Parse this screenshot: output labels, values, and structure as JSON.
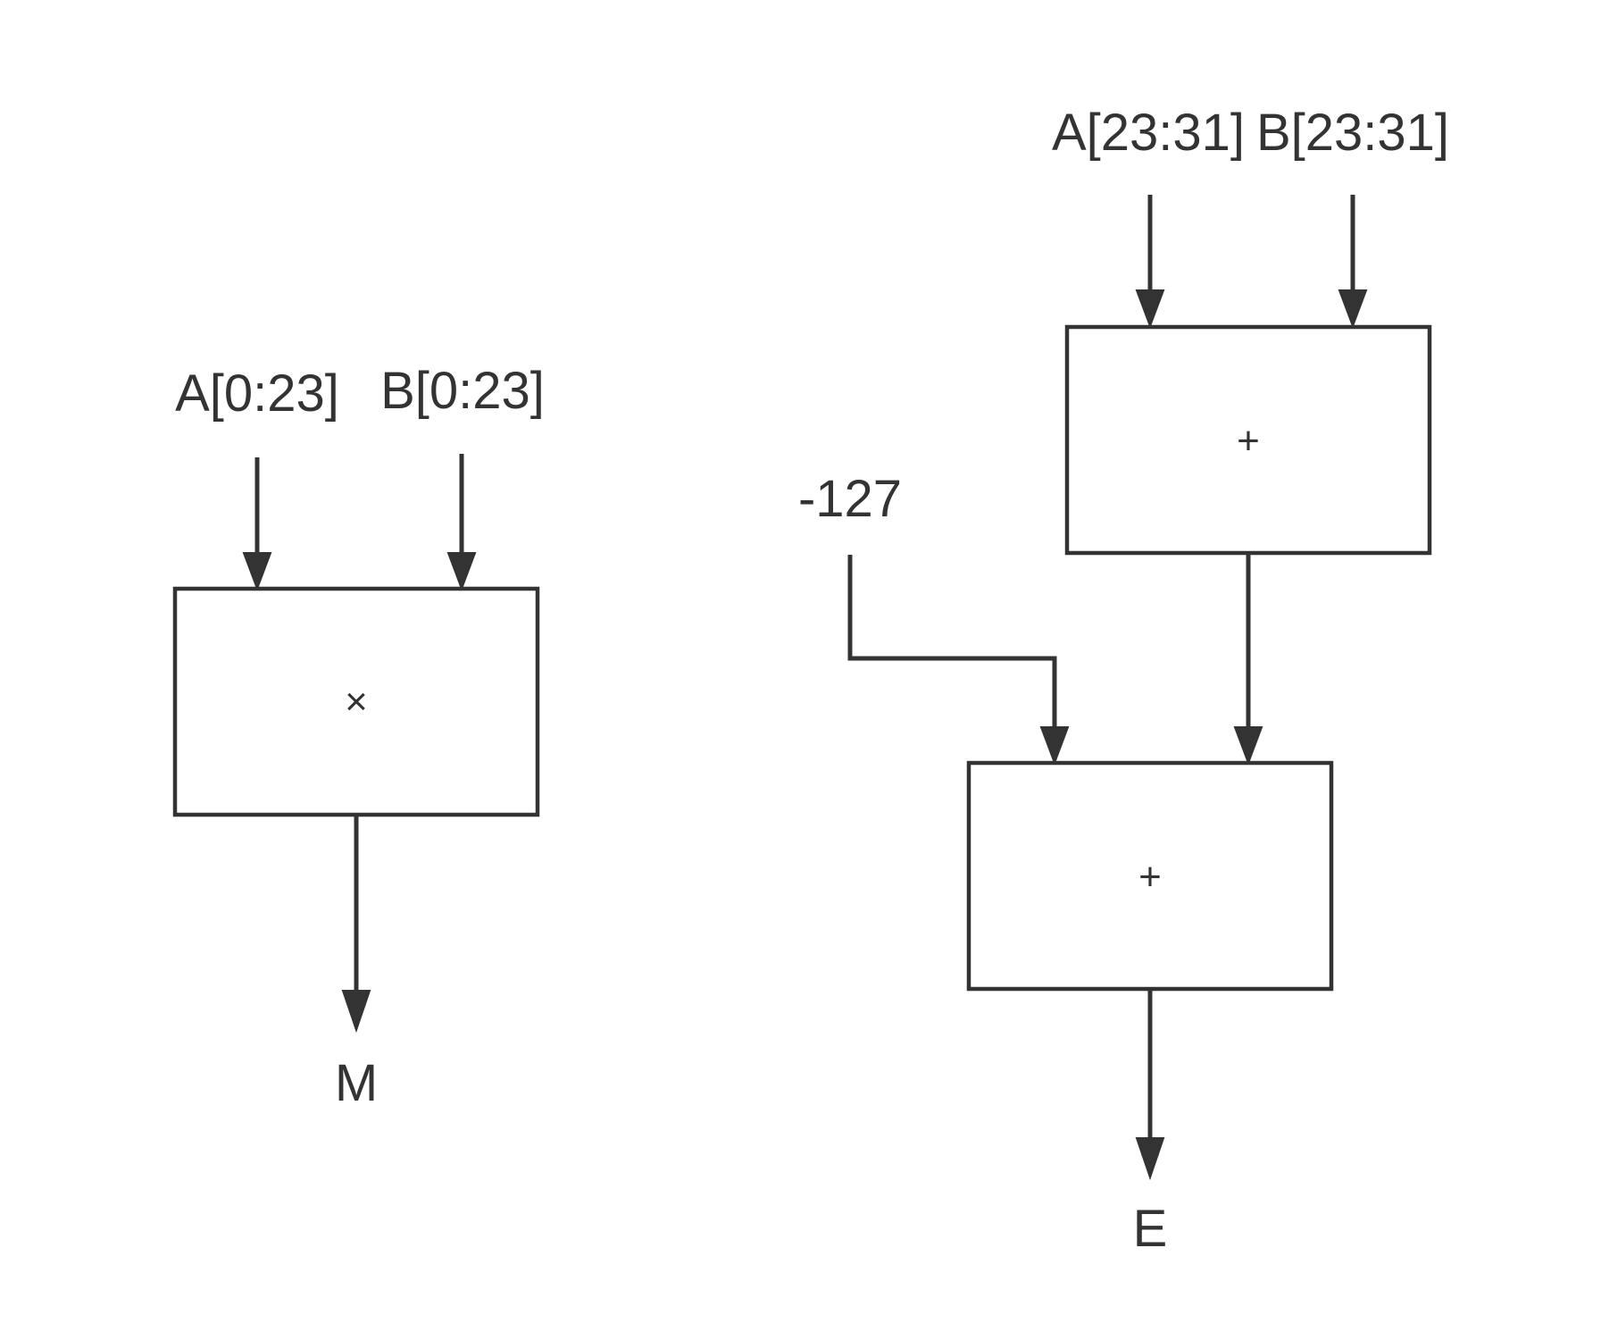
{
  "diagram": {
    "multiplier": {
      "input_a": "A[0:23]",
      "input_b": "B[0:23]",
      "operator": "×",
      "output": "M"
    },
    "exponent": {
      "input_a": "A[23:31]",
      "input_b": "B[23:31]",
      "adder_top_operator": "+",
      "bias": "-127",
      "adder_bottom_operator": "+",
      "output": "E"
    }
  }
}
